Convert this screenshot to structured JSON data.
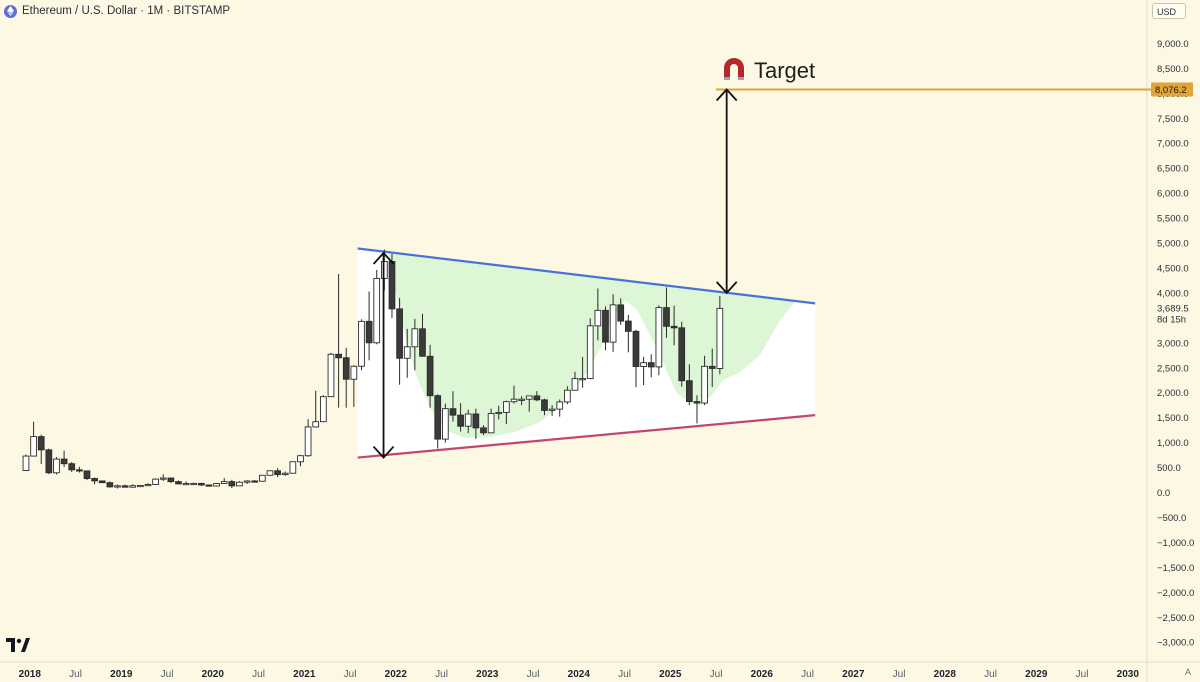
{
  "header": {
    "symbol_title": "Ethereum / U.S. Dollar · 1M · BITSTAMP",
    "currency_button": "USD"
  },
  "annotations": {
    "target_label": "Target",
    "target_price_tag": "8,076.2",
    "last_price_tag": "3,689.5",
    "countdown_tag": "8d 15h"
  },
  "footer": {
    "auto_scale": "A"
  },
  "colors": {
    "background": "#fdf8e4",
    "bullish": "#ffffff",
    "bearish": "#3a3a3a",
    "resistance_line": "#4a72d6",
    "support_line": "#c4456d",
    "target_line": "#e0a53a",
    "cup_fill": "#d8f5d2"
  },
  "chart_data": {
    "type": "candlestick",
    "title": "Ethereum / U.S. Dollar · 1M · BITSTAMP",
    "ylim": [
      -3200,
      9900
    ],
    "y_ticks": [
      "9,000.0",
      "8,500.0",
      "8,000.0",
      "7,500.0",
      "7,000.0",
      "6,500.0",
      "6,000.0",
      "5,500.0",
      "5,000.0",
      "4,500.0",
      "4,000.0",
      "3,500.0",
      "3,000.0",
      "2,500.0",
      "2,000.0",
      "1,500.0",
      "1,000.0",
      "500.0",
      "0.0",
      "−500.0",
      "−1,000.0",
      "−1,500.0",
      "−2,000.0",
      "−2,500.0",
      "−3,000.0"
    ],
    "x_ticks": [
      {
        "label": "2018",
        "year": 2018.0,
        "bold": true
      },
      {
        "label": "Jul",
        "year": 2018.5,
        "bold": false
      },
      {
        "label": "2019",
        "year": 2019.0,
        "bold": true
      },
      {
        "label": "Jul",
        "year": 2019.5,
        "bold": false
      },
      {
        "label": "2020",
        "year": 2020.0,
        "bold": true
      },
      {
        "label": "Jul",
        "year": 2020.5,
        "bold": false
      },
      {
        "label": "2021",
        "year": 2021.0,
        "bold": true
      },
      {
        "label": "Jul",
        "year": 2021.5,
        "bold": false
      },
      {
        "label": "2022",
        "year": 2022.0,
        "bold": true
      },
      {
        "label": "Jul",
        "year": 2022.5,
        "bold": false
      },
      {
        "label": "2023",
        "year": 2023.0,
        "bold": true
      },
      {
        "label": "Jul",
        "year": 2023.5,
        "bold": false
      },
      {
        "label": "2024",
        "year": 2024.0,
        "bold": true
      },
      {
        "label": "Jul",
        "year": 2024.5,
        "bold": false
      },
      {
        "label": "2025",
        "year": 2025.0,
        "bold": true
      },
      {
        "label": "Jul",
        "year": 2025.5,
        "bold": false
      },
      {
        "label": "2026",
        "year": 2026.0,
        "bold": true
      },
      {
        "label": "Jul",
        "year": 2026.5,
        "bold": false
      },
      {
        "label": "2027",
        "year": 2027.0,
        "bold": true
      },
      {
        "label": "Jul",
        "year": 2027.5,
        "bold": false
      },
      {
        "label": "2028",
        "year": 2028.0,
        "bold": true
      },
      {
        "label": "Jul",
        "year": 2028.5,
        "bold": false
      },
      {
        "label": "2029",
        "year": 2029.0,
        "bold": true
      },
      {
        "label": "Jul",
        "year": 2029.5,
        "bold": false
      },
      {
        "label": "2030",
        "year": 2030.0,
        "bold": true
      }
    ],
    "target_price": 8076.2,
    "last_price": 3689.5,
    "resistance_line": {
      "start": {
        "date": "2021-08",
        "price": 4890
      },
      "end": {
        "date": "2026-08",
        "price": 3790
      }
    },
    "support_line": {
      "start": {
        "date": "2021-08",
        "price": 700
      },
      "end": {
        "date": "2026-08",
        "price": 1550
      }
    },
    "measure_arrows": [
      {
        "date": "2021-11",
        "from": 4800,
        "to": 700
      },
      {
        "date": "2025-08",
        "from": 4000,
        "to": 8076.2
      }
    ],
    "candles": [
      [
        "2017-12",
        440,
        760,
        430,
        730
      ],
      [
        "2018-01",
        730,
        1420,
        720,
        1120
      ],
      [
        "2018-02",
        1120,
        1160,
        570,
        855
      ],
      [
        "2018-03",
        855,
        880,
        370,
        395
      ],
      [
        "2018-04",
        395,
        710,
        360,
        670
      ],
      [
        "2018-05",
        670,
        840,
        510,
        577
      ],
      [
        "2018-06",
        577,
        610,
        410,
        455
      ],
      [
        "2018-07",
        455,
        515,
        400,
        433
      ],
      [
        "2018-08",
        433,
        440,
        250,
        280
      ],
      [
        "2018-09",
        280,
        300,
        165,
        232
      ],
      [
        "2018-10",
        232,
        235,
        190,
        197
      ],
      [
        "2018-11",
        197,
        220,
        98,
        113
      ],
      [
        "2018-12",
        113,
        160,
        82,
        134
      ],
      [
        "2019-01",
        134,
        160,
        100,
        106
      ],
      [
        "2019-02",
        106,
        167,
        102,
        136
      ],
      [
        "2019-03",
        136,
        145,
        124,
        141
      ],
      [
        "2019-04",
        141,
        185,
        140,
        160
      ],
      [
        "2019-05",
        160,
        285,
        158,
        268
      ],
      [
        "2019-06",
        268,
        365,
        230,
        290
      ],
      [
        "2019-07",
        290,
        300,
        190,
        218
      ],
      [
        "2019-08",
        218,
        240,
        165,
        172
      ],
      [
        "2019-09",
        172,
        222,
        155,
        180
      ],
      [
        "2019-10",
        180,
        198,
        155,
        182
      ],
      [
        "2019-11",
        182,
        195,
        130,
        151
      ],
      [
        "2019-12",
        151,
        155,
        118,
        130
      ],
      [
        "2020-01",
        130,
        185,
        125,
        180
      ],
      [
        "2020-02",
        180,
        288,
        180,
        219
      ],
      [
        "2020-03",
        219,
        254,
        90,
        133
      ],
      [
        "2020-04",
        133,
        228,
        130,
        206
      ],
      [
        "2020-05",
        206,
        245,
        170,
        231
      ],
      [
        "2020-06",
        231,
        250,
        216,
        226
      ],
      [
        "2020-07",
        226,
        350,
        218,
        345
      ],
      [
        "2020-08",
        345,
        445,
        340,
        435
      ],
      [
        "2020-09",
        435,
        488,
        310,
        359
      ],
      [
        "2020-10",
        359,
        420,
        335,
        386
      ],
      [
        "2020-11",
        386,
        625,
        380,
        616
      ],
      [
        "2020-12",
        616,
        755,
        525,
        737
      ],
      [
        "2021-01",
        737,
        1470,
        715,
        1314
      ],
      [
        "2021-02",
        1314,
        2040,
        1300,
        1419
      ],
      [
        "2021-03",
        1419,
        1950,
        1410,
        1920
      ],
      [
        "2021-04",
        1920,
        2800,
        1920,
        2770
      ],
      [
        "2021-05",
        2770,
        4380,
        1700,
        2700
      ],
      [
        "2021-06",
        2700,
        2900,
        1700,
        2270
      ],
      [
        "2021-07",
        2270,
        2550,
        1715,
        2530
      ],
      [
        "2021-08",
        2530,
        3470,
        2450,
        3430
      ],
      [
        "2021-09",
        3430,
        4030,
        2650,
        3000
      ],
      [
        "2021-10",
        3000,
        4460,
        2970,
        4290
      ],
      [
        "2021-11",
        4290,
        4870,
        4050,
        4630
      ],
      [
        "2021-12",
        4630,
        4780,
        3500,
        3680
      ],
      [
        "2022-01",
        3680,
        3900,
        2160,
        2690
      ],
      [
        "2022-02",
        2690,
        3280,
        2300,
        2920
      ],
      [
        "2022-03",
        2920,
        3480,
        2450,
        3280
      ],
      [
        "2022-04",
        3280,
        3580,
        2720,
        2730
      ],
      [
        "2022-05",
        2730,
        2960,
        1700,
        1940
      ],
      [
        "2022-06",
        1940,
        1970,
        880,
        1070
      ],
      [
        "2022-07",
        1070,
        1780,
        1000,
        1680
      ],
      [
        "2022-08",
        1680,
        2030,
        1420,
        1550
      ],
      [
        "2022-09",
        1550,
        1790,
        1220,
        1328
      ],
      [
        "2022-10",
        1328,
        1660,
        1190,
        1573
      ],
      [
        "2022-11",
        1573,
        1680,
        1075,
        1295
      ],
      [
        "2022-12",
        1295,
        1350,
        1150,
        1196
      ],
      [
        "2023-01",
        1196,
        1680,
        1190,
        1585
      ],
      [
        "2023-02",
        1585,
        1740,
        1465,
        1605
      ],
      [
        "2023-03",
        1605,
        1840,
        1370,
        1820
      ],
      [
        "2023-04",
        1820,
        2140,
        1780,
        1870
      ],
      [
        "2023-05",
        1870,
        1930,
        1750,
        1870
      ],
      [
        "2023-06",
        1870,
        1930,
        1620,
        1935
      ],
      [
        "2023-07",
        1935,
        2030,
        1830,
        1857
      ],
      [
        "2023-08",
        1857,
        1880,
        1550,
        1645
      ],
      [
        "2023-09",
        1645,
        1750,
        1535,
        1671
      ],
      [
        "2023-10",
        1671,
        1865,
        1520,
        1815
      ],
      [
        "2023-11",
        1815,
        2130,
        1770,
        2050
      ],
      [
        "2023-12",
        2050,
        2420,
        2040,
        2282
      ],
      [
        "2024-01",
        2282,
        2715,
        2100,
        2283
      ],
      [
        "2024-02",
        2283,
        3490,
        2270,
        3340
      ],
      [
        "2024-03",
        3340,
        4090,
        3050,
        3650
      ],
      [
        "2024-04",
        3650,
        3730,
        2850,
        3013
      ],
      [
        "2024-05",
        3013,
        3975,
        2820,
        3760
      ],
      [
        "2024-06",
        3760,
        3890,
        3360,
        3435
      ],
      [
        "2024-07",
        3435,
        3560,
        2810,
        3230
      ],
      [
        "2024-08",
        3230,
        3260,
        2110,
        2525
      ],
      [
        "2024-09",
        2525,
        2720,
        2150,
        2602
      ],
      [
        "2024-10",
        2602,
        2770,
        2310,
        2517
      ],
      [
        "2024-11",
        2517,
        3750,
        2350,
        3705
      ],
      [
        "2024-12",
        3705,
        4110,
        3100,
        3330
      ],
      [
        "2025-01",
        3330,
        3745,
        2950,
        3300
      ],
      [
        "2025-02",
        3300,
        3420,
        2120,
        2240
      ],
      [
        "2025-03",
        2240,
        2570,
        1750,
        1822
      ],
      [
        "2025-04",
        1822,
        1950,
        1385,
        1793
      ],
      [
        "2025-05",
        1793,
        2740,
        1750,
        2528
      ],
      [
        "2025-06",
        2528,
        2880,
        2115,
        2486
      ],
      [
        "2025-07",
        2486,
        3940,
        2370,
        3690
      ]
    ]
  }
}
